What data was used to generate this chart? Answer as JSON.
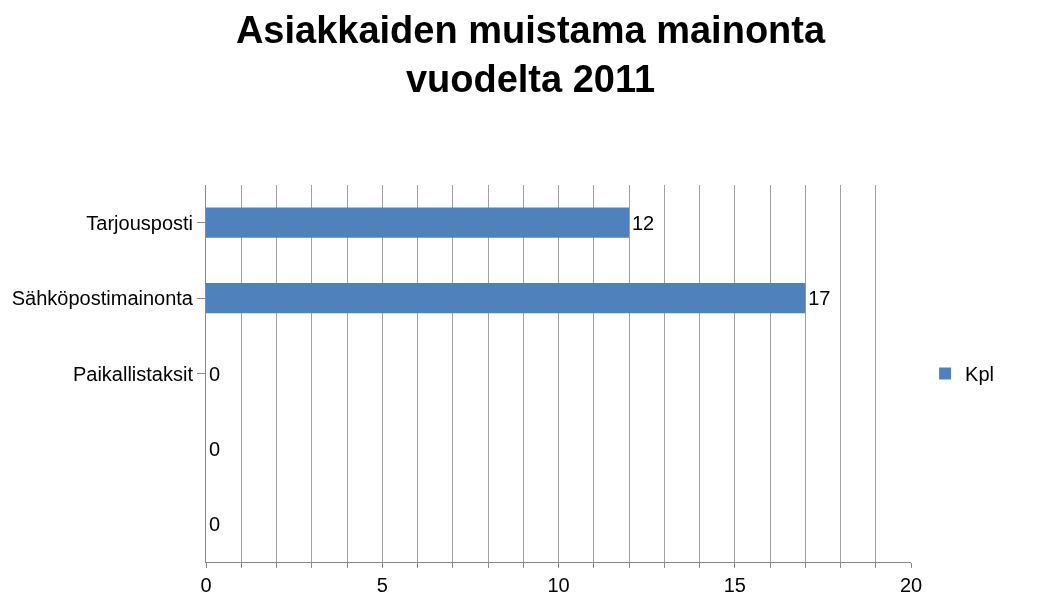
{
  "chart_data": {
    "type": "bar",
    "orientation": "horizontal",
    "title": "Asiakkaiden muistama mainonta\nvuodelta 2011",
    "categories": [
      "Tarjousposti",
      "Sähköpostimainonta",
      "Paikallistaksit",
      null,
      null
    ],
    "series": [
      {
        "name": "Kpl",
        "color": "#4f81bd",
        "values": [
          12,
          17,
          0,
          0,
          0
        ]
      }
    ],
    "xlim": [
      0,
      20
    ],
    "xticks": [
      0,
      {
        "value": 1,
        "label": null
      },
      {
        "value": 2,
        "label": null
      },
      {
        "value": 3,
        "label": null
      },
      {
        "value": 4,
        "label": null
      },
      5,
      {
        "value": 6,
        "label": null
      },
      {
        "value": 7,
        "label": null
      },
      {
        "value": 8,
        "label": null
      },
      {
        "value": 9,
        "label": null
      },
      10,
      {
        "value": 11,
        "label": null
      },
      {
        "value": 12,
        "label": null
      },
      {
        "value": 13,
        "label": null
      },
      {
        "value": 14,
        "label": null
      },
      15,
      {
        "value": 16,
        "label": null
      },
      {
        "value": 17,
        "label": null
      },
      {
        "value": 18,
        "label": null
      },
      {
        "value": 19,
        "label": null
      },
      20
    ],
    "grid": "x",
    "legend": "right",
    "data_labels": true
  }
}
